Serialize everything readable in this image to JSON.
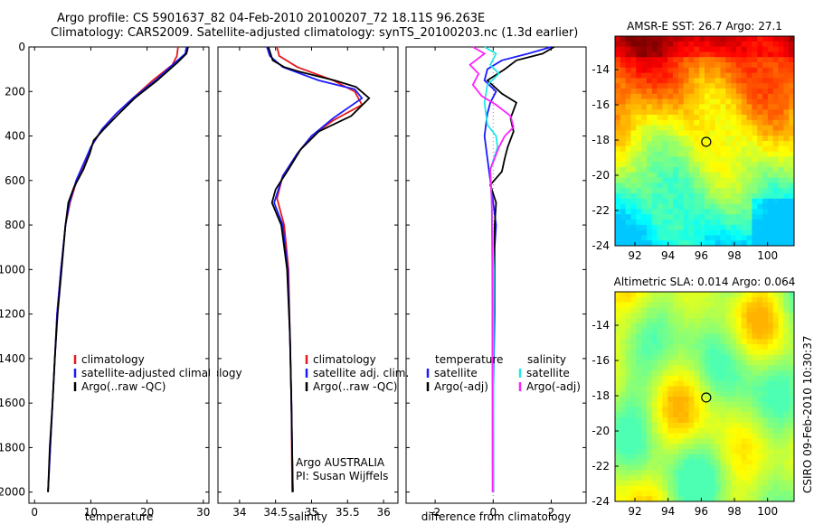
{
  "header": {
    "title_line1": "Argo profile: CS 5901637_82 04-Feb-2010 20100207_72 18.11S 96.263E",
    "title_line2": "Climatology: CARS2009. Satellite-adjusted climatology: synTS_20100203.nc (1.3d earlier)"
  },
  "footer": {
    "credit": "CSIRO 09-Feb-2010 10:30:37"
  },
  "colors": {
    "climatology": "#e41a1c",
    "satellite": "#1a1aff",
    "argo": "#000000",
    "salinity_satellite": "#22e8e8",
    "salinity_argo": "#ff22ff"
  },
  "chart_data": [
    {
      "type": "line",
      "id": "temperature",
      "xlabel": "temperature",
      "ylabel": "",
      "xlim": [
        -1,
        31
      ],
      "ylim": [
        2050,
        0
      ],
      "y_inverted": true,
      "xticks": [
        0,
        10,
        20,
        30
      ],
      "yticks": [
        0,
        200,
        400,
        600,
        800,
        1000,
        1200,
        1400,
        1600,
        1800,
        2000
      ],
      "legend": {
        "placement": "lower-right",
        "entries": [
          "climatology",
          "satellite-adjusted climatology",
          "Argo(..raw -QC)"
        ]
      },
      "series": [
        {
          "name": "climatology",
          "color": "#e41a1c",
          "points": [
            [
              25.5,
              0
            ],
            [
              25.3,
              40
            ],
            [
              24.5,
              80
            ],
            [
              21,
              150
            ],
            [
              17.5,
              230
            ],
            [
              14.5,
              300
            ],
            [
              12,
              370
            ],
            [
              10,
              450
            ],
            [
              9,
              520
            ],
            [
              7.5,
              600
            ],
            [
              6.3,
              700
            ],
            [
              5.5,
              800
            ],
            [
              4.7,
              1000
            ],
            [
              4,
              1200
            ],
            [
              3.6,
              1400
            ],
            [
              3.2,
              1600
            ],
            [
              2.8,
              1800
            ],
            [
              2.4,
              2000
            ]
          ]
        },
        {
          "name": "satellite-adjusted climatology",
          "color": "#1a1aff",
          "points": [
            [
              27,
              0
            ],
            [
              26.8,
              30
            ],
            [
              25,
              70
            ],
            [
              21.5,
              150
            ],
            [
              17.5,
              230
            ],
            [
              14.5,
              300
            ],
            [
              12,
              370
            ],
            [
              10,
              450
            ],
            [
              8.8,
              520
            ],
            [
              7.4,
              600
            ],
            [
              6.2,
              700
            ],
            [
              5.5,
              800
            ],
            [
              4.7,
              1000
            ],
            [
              4,
              1200
            ],
            [
              3.6,
              1400
            ],
            [
              3.2,
              1600
            ],
            [
              2.8,
              1800
            ],
            [
              2.4,
              2000
            ]
          ]
        },
        {
          "name": "Argo(..raw -QC)",
          "color": "#000000",
          "points": [
            [
              27.3,
              0
            ],
            [
              27,
              30
            ],
            [
              25.4,
              70
            ],
            [
              21.8,
              150
            ],
            [
              17.8,
              230
            ],
            [
              15,
              300
            ],
            [
              12.3,
              370
            ],
            [
              10.5,
              420
            ],
            [
              9.8,
              480
            ],
            [
              8.7,
              550
            ],
            [
              7,
              630
            ],
            [
              6,
              700
            ],
            [
              5.5,
              800
            ],
            [
              4.8,
              1000
            ],
            [
              4.1,
              1200
            ],
            [
              3.6,
              1400
            ],
            [
              3.2,
              1600
            ],
            [
              2.7,
              1800
            ],
            [
              2.4,
              2000
            ]
          ]
        }
      ]
    },
    {
      "type": "line",
      "id": "salinity",
      "xlabel": "salinity",
      "ylabel": "",
      "xlim": [
        33.7,
        36.2
      ],
      "ylim": [
        2050,
        0
      ],
      "y_inverted": true,
      "xticks": [
        34,
        34.5,
        35,
        35.5,
        36
      ],
      "xtick_labels": [
        "34",
        "34.5",
        "35",
        "35.5",
        "36"
      ],
      "legend": {
        "placement": "lower-right",
        "entries": [
          "climatology",
          "satellite adj. clim.",
          "Argo(..raw -QC)"
        ]
      },
      "annotation": [
        "Argo AUSTRALIA",
        "PI: Susan Wijffels"
      ],
      "series": [
        {
          "name": "climatology",
          "color": "#e41a1c",
          "points": [
            [
              34.52,
              0
            ],
            [
              34.55,
              40
            ],
            [
              34.8,
              90
            ],
            [
              35.3,
              150
            ],
            [
              35.6,
              200
            ],
            [
              35.7,
              260
            ],
            [
              35.3,
              330
            ],
            [
              35,
              400
            ],
            [
              34.8,
              480
            ],
            [
              34.6,
              580
            ],
            [
              34.52,
              680
            ],
            [
              34.62,
              800
            ],
            [
              34.68,
              1000
            ],
            [
              34.7,
              1300
            ],
            [
              34.72,
              1600
            ],
            [
              34.73,
              2000
            ]
          ]
        },
        {
          "name": "satellite adj. clim.",
          "color": "#1a1aff",
          "points": [
            [
              34.38,
              0
            ],
            [
              34.42,
              40
            ],
            [
              34.6,
              90
            ],
            [
              35.1,
              150
            ],
            [
              35.6,
              190
            ],
            [
              35.7,
              230
            ],
            [
              35.3,
              320
            ],
            [
              35,
              400
            ],
            [
              34.8,
              480
            ],
            [
              34.6,
              580
            ],
            [
              34.48,
              700
            ],
            [
              34.6,
              800
            ],
            [
              34.67,
              1000
            ],
            [
              34.7,
              1300
            ],
            [
              34.72,
              1600
            ],
            [
              34.74,
              2000
            ]
          ]
        },
        {
          "name": "Argo(..raw -QC)",
          "color": "#000000",
          "points": [
            [
              34.4,
              0
            ],
            [
              34.46,
              60
            ],
            [
              34.62,
              90
            ],
            [
              34.82,
              110
            ],
            [
              35.32,
              150
            ],
            [
              35.62,
              180
            ],
            [
              35.8,
              230
            ],
            [
              35.55,
              310
            ],
            [
              35.1,
              380
            ],
            [
              34.85,
              460
            ],
            [
              34.68,
              550
            ],
            [
              34.5,
              640
            ],
            [
              34.45,
              700
            ],
            [
              34.58,
              800
            ],
            [
              34.66,
              1000
            ],
            [
              34.7,
              1300
            ],
            [
              34.72,
              1600
            ],
            [
              34.74,
              2000
            ]
          ]
        }
      ]
    },
    {
      "type": "line",
      "id": "difference",
      "xlabel": "difference from climatology",
      "ylabel": "",
      "xlim": [
        -3,
        3.2
      ],
      "ylim": [
        2050,
        0
      ],
      "y_inverted": true,
      "xticks": [
        -2,
        0,
        2
      ],
      "legend": {
        "placement": "lower-center",
        "columns": [
          {
            "heading": "temperature",
            "entries": [
              "satellite",
              "Argo(-adj)"
            ]
          },
          {
            "heading": "salinity",
            "entries": [
              "satellite",
              "Argo(-adj)"
            ]
          }
        ]
      },
      "series": [
        {
          "name": "temperature satellite",
          "color": "#1a1aff",
          "points": [
            [
              2,
              0
            ],
            [
              1.2,
              30
            ],
            [
              0.3,
              60
            ],
            [
              -0.2,
              100
            ],
            [
              -0.3,
              150
            ],
            [
              0.1,
              200
            ],
            [
              -0.1,
              250
            ],
            [
              -0.2,
              300
            ],
            [
              -0.3,
              400
            ],
            [
              -0.2,
              500
            ],
            [
              -0.1,
              600
            ],
            [
              0,
              700
            ],
            [
              0.1,
              800
            ],
            [
              0.05,
              900
            ],
            [
              0.05,
              1200
            ],
            [
              0,
              1600
            ],
            [
              0,
              2000
            ]
          ]
        },
        {
          "name": "temperature Argo(-adj)",
          "color": "#000000",
          "points": [
            [
              2.1,
              0
            ],
            [
              1.7,
              30
            ],
            [
              0.8,
              60
            ],
            [
              0.4,
              100
            ],
            [
              -0.2,
              150
            ],
            [
              0.3,
              210
            ],
            [
              0.8,
              250
            ],
            [
              0.6,
              320
            ],
            [
              0.7,
              380
            ],
            [
              0.5,
              450
            ],
            [
              0.4,
              500
            ],
            [
              0.3,
              560
            ],
            [
              -0.1,
              620
            ],
            [
              0.1,
              700
            ],
            [
              0.05,
              800
            ],
            [
              0.03,
              1000
            ],
            [
              0,
              1500
            ],
            [
              0,
              2000
            ]
          ]
        },
        {
          "name": "salinity satellite",
          "color": "#22e8e8",
          "points": [
            [
              -0.3,
              0
            ],
            [
              0.1,
              30
            ],
            [
              -0.1,
              80
            ],
            [
              0.2,
              120
            ],
            [
              -0.2,
              170
            ],
            [
              -0.3,
              250
            ],
            [
              -0.2,
              350
            ],
            [
              0.1,
              400
            ],
            [
              0.15,
              450
            ],
            [
              -0.1,
              550
            ],
            [
              -0.05,
              700
            ],
            [
              0.02,
              1000
            ],
            [
              0,
              2000
            ]
          ]
        },
        {
          "name": "salinity Argo(-adj)",
          "color": "#ff22ff",
          "points": [
            [
              -0.7,
              0
            ],
            [
              -0.3,
              30
            ],
            [
              -0.8,
              80
            ],
            [
              -0.5,
              120
            ],
            [
              -0.7,
              170
            ],
            [
              -0.4,
              220
            ],
            [
              0.1,
              260
            ],
            [
              0.6,
              310
            ],
            [
              0.7,
              360
            ],
            [
              0.4,
              400
            ],
            [
              0.2,
              450
            ],
            [
              -0.1,
              550
            ],
            [
              -0.05,
              700
            ],
            [
              -0.03,
              1000
            ],
            [
              -0.02,
              2000
            ]
          ]
        }
      ]
    },
    {
      "type": "heatmap",
      "id": "sst",
      "title": "AMSR-E SST: 26.7 Argo: 27.1",
      "xlim": [
        90.8,
        101.6
      ],
      "ylim": [
        -24,
        -12.1
      ],
      "xticks": [
        92,
        94,
        96,
        98,
        100
      ],
      "yticks": [
        -14,
        -16,
        -18,
        -20,
        -22,
        -24
      ],
      "marker": {
        "x": 96.3,
        "y": -18.1
      },
      "colormap": "jet"
    },
    {
      "type": "heatmap",
      "id": "sla",
      "title": "Altimetric SLA: 0.014 Argo: 0.064",
      "xlim": [
        90.8,
        101.6
      ],
      "ylim": [
        -24,
        -12.1
      ],
      "xticks": [
        92,
        94,
        96,
        98,
        100
      ],
      "yticks": [
        -14,
        -16,
        -18,
        -20,
        -22,
        -24
      ],
      "marker": {
        "x": 96.3,
        "y": -18.1
      },
      "colormap": "jet"
    }
  ]
}
